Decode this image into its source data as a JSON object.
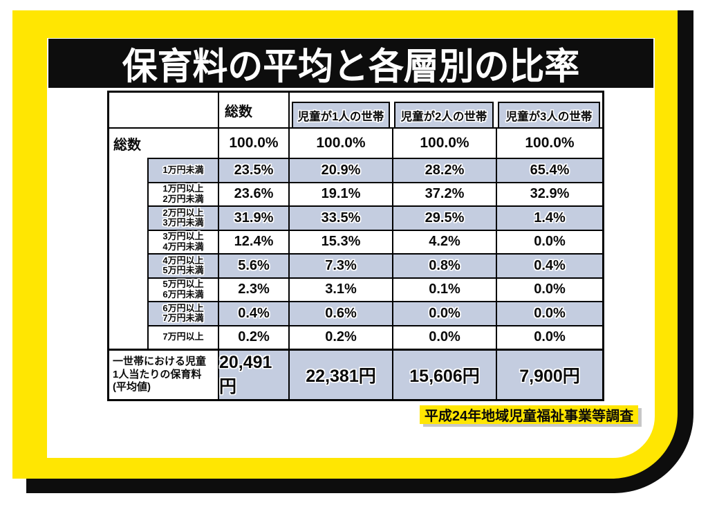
{
  "title": "保育料の平均と各層別の比率",
  "source_note": "平成24年地域児童福祉事業等調査",
  "colors": {
    "frame_yellow": "#ffe602",
    "backdrop_black": "#0d0d0d",
    "shaded_cell_blue": "#c4cde0",
    "table_border": "#000000",
    "title_text": "#ffffff"
  },
  "table": {
    "column_headers": [
      "総数",
      "児童が1人の世帯",
      "児童が2人の世帯",
      "児童が3人の世帯"
    ],
    "total_row": {
      "label": "総数",
      "values": [
        "100.0%",
        "100.0%",
        "100.0%",
        "100.0%"
      ]
    },
    "tier_rows": [
      {
        "label": "1万円未満",
        "values": [
          "23.5%",
          "20.9%",
          "28.2%",
          "65.4%"
        ],
        "shaded": true
      },
      {
        "label": "1万円以上\n2万円未満",
        "values": [
          "23.6%",
          "19.1%",
          "37.2%",
          "32.9%"
        ],
        "shaded": false
      },
      {
        "label": "2万円以上\n3万円未満",
        "values": [
          "31.9%",
          "33.5%",
          "29.5%",
          "1.4%"
        ],
        "shaded": true
      },
      {
        "label": "3万円以上\n4万円未満",
        "values": [
          "12.4%",
          "15.3%",
          "4.2%",
          "0.0%"
        ],
        "shaded": false
      },
      {
        "label": "4万円以上\n5万円未満",
        "values": [
          "5.6%",
          "7.3%",
          "0.8%",
          "0.4%"
        ],
        "shaded": true
      },
      {
        "label": "5万円以上\n6万円未満",
        "values": [
          "2.3%",
          "3.1%",
          "0.1%",
          "0.0%"
        ],
        "shaded": false
      },
      {
        "label": "6万円以上\n7万円未満",
        "values": [
          "0.4%",
          "0.6%",
          "0.0%",
          "0.0%"
        ],
        "shaded": true
      },
      {
        "label": "7万円以上",
        "values": [
          "0.2%",
          "0.2%",
          "0.0%",
          "0.0%"
        ],
        "shaded": false
      }
    ],
    "average_row": {
      "label": "一世帯における児童\n1人当たりの保育料\n(平均値)",
      "values": [
        "20,491円",
        "22,381円",
        "15,606円",
        "7,900円"
      ]
    }
  },
  "chart_data": {
    "type": "table",
    "title": "保育料の平均と各層別の比率",
    "columns": [
      "総数",
      "児童が1人の世帯",
      "児童が2人の世帯",
      "児童が3人の世帯"
    ],
    "row_labels": [
      "総数",
      "1万円未満",
      "1万円以上2万円未満",
      "2万円以上3万円未満",
      "3万円以上4万円未満",
      "4万円以上5万円未満",
      "5万円以上6万円未満",
      "6万円以上7万円未満",
      "7万円以上",
      "一世帯における児童1人当たりの保育料(平均値)"
    ],
    "rows_pct": [
      [
        100.0,
        100.0,
        100.0,
        100.0
      ],
      [
        23.5,
        20.9,
        28.2,
        65.4
      ],
      [
        23.6,
        19.1,
        37.2,
        32.9
      ],
      [
        31.9,
        33.5,
        29.5,
        1.4
      ],
      [
        12.4,
        15.3,
        4.2,
        0.0
      ],
      [
        5.6,
        7.3,
        0.8,
        0.4
      ],
      [
        2.3,
        3.1,
        0.1,
        0.0
      ],
      [
        0.4,
        0.6,
        0.0,
        0.0
      ],
      [
        0.2,
        0.2,
        0.0,
        0.0
      ]
    ],
    "average_fee_yen": [
      20491,
      22381,
      15606,
      7900
    ],
    "source": "平成24年地域児童福祉事業等調査"
  }
}
